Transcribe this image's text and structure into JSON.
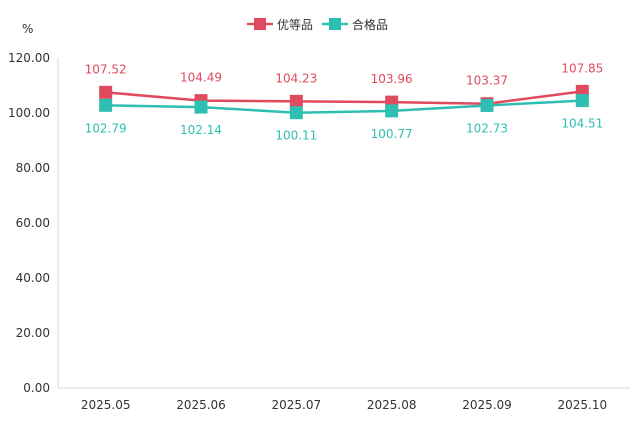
{
  "chart_data": {
    "type": "line",
    "title": "",
    "xlabel": "",
    "ylabel": "%",
    "ylim": [
      0,
      120
    ],
    "yticks": [
      0,
      20,
      40,
      60,
      80,
      100,
      120
    ],
    "ytick_labels": [
      "0.00",
      "20.00",
      "40.00",
      "60.00",
      "80.00",
      "100.00",
      "120.00"
    ],
    "categories": [
      "2025.05",
      "2025.06",
      "2025.07",
      "2025.08",
      "2025.09",
      "2025.10"
    ],
    "grid": false,
    "legend_position": "top-center",
    "series": [
      {
        "name": "优等品",
        "color": "#e04a5f",
        "marker": "square",
        "label_position": "above",
        "values": [
          107.52,
          104.49,
          104.23,
          103.96,
          103.37,
          107.85
        ],
        "labels": [
          "107.52",
          "104.49",
          "104.23",
          "103.96",
          "103.37",
          "107.85"
        ]
      },
      {
        "name": "合格品",
        "color": "#2fbfb2",
        "marker": "square",
        "label_position": "below",
        "values": [
          102.79,
          102.14,
          100.11,
          100.77,
          102.73,
          104.51
        ],
        "labels": [
          "102.79",
          "102.14",
          "100.11",
          "100.77",
          "102.73",
          "104.51"
        ]
      }
    ]
  }
}
